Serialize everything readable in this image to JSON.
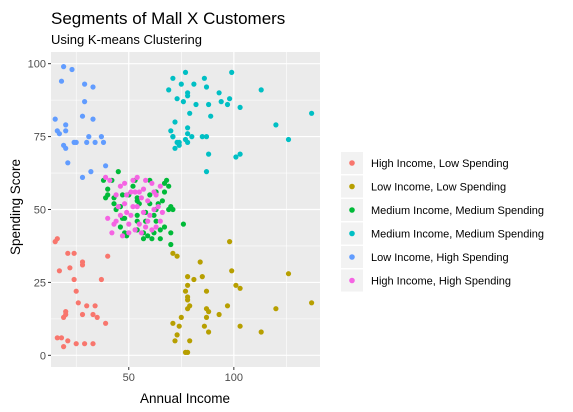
{
  "chart_data": {
    "type": "scatter",
    "title": "Segments of Mall X Customers",
    "subtitle": "Using K-means Clustering",
    "xlabel": "Annual Income",
    "ylabel": "Spending Score",
    "xlim": [
      13,
      141
    ],
    "ylim": [
      -4,
      104
    ],
    "xticks": [
      50,
      100
    ],
    "yticks": [
      0,
      25,
      50,
      75,
      100
    ],
    "grid": true,
    "legend_position": "right",
    "series": [
      {
        "name": "High Income, Low Spending",
        "color": "#F8766D",
        "points": [
          [
            15,
            39
          ],
          [
            16,
            6
          ],
          [
            16,
            40
          ],
          [
            17,
            29
          ],
          [
            18,
            6
          ],
          [
            19,
            3
          ],
          [
            20,
            14
          ],
          [
            20,
            15
          ],
          [
            19,
            13
          ],
          [
            21,
            35
          ],
          [
            21,
            5
          ],
          [
            24,
            35
          ],
          [
            24,
            26
          ],
          [
            25,
            4
          ],
          [
            28,
            14
          ],
          [
            28,
            32
          ],
          [
            28,
            31
          ],
          [
            29,
            4
          ],
          [
            30,
            17
          ],
          [
            33,
            4
          ],
          [
            33,
            14
          ],
          [
            35,
            13
          ],
          [
            34,
            17
          ],
          [
            37,
            26
          ],
          [
            39,
            11
          ],
          [
            40,
            34
          ],
          [
            25,
            22
          ],
          [
            22,
            30
          ],
          [
            26,
            18
          ]
        ]
      },
      {
        "name": "Low Income, Low Spending",
        "color": "#B79F00",
        "points": [
          [
            71,
            35
          ],
          [
            71,
            11
          ],
          [
            72,
            5
          ],
          [
            73,
            34
          ],
          [
            73,
            7
          ],
          [
            74,
            10
          ],
          [
            75,
            13
          ],
          [
            77,
            22
          ],
          [
            77,
            1
          ],
          [
            78,
            16
          ],
          [
            78,
            20
          ],
          [
            78,
            27
          ],
          [
            78,
            1
          ],
          [
            78,
            19
          ],
          [
            78,
            24
          ],
          [
            79,
            17
          ],
          [
            79,
            5
          ],
          [
            81,
            26
          ],
          [
            85,
            27
          ],
          [
            86,
            10
          ],
          [
            87,
            13
          ],
          [
            87,
            16
          ],
          [
            87,
            22
          ],
          [
            88,
            8
          ],
          [
            88,
            15
          ],
          [
            93,
            14
          ],
          [
            97,
            17
          ],
          [
            98,
            39
          ],
          [
            99,
            29
          ],
          [
            101,
            24
          ],
          [
            103,
            23
          ],
          [
            103,
            10
          ],
          [
            113,
            8
          ],
          [
            120,
            16
          ],
          [
            126,
            28
          ],
          [
            137,
            18
          ],
          [
            84,
            32
          ]
        ]
      },
      {
        "name": "Medium Income, Medium Spending",
        "color": "#00BA38",
        "points": [
          [
            38,
            60
          ],
          [
            39,
            54
          ],
          [
            40,
            55
          ],
          [
            40,
            57
          ],
          [
            42,
            60
          ],
          [
            43,
            52
          ],
          [
            43,
            54
          ],
          [
            44,
            50
          ],
          [
            46,
            51
          ],
          [
            46,
            44
          ],
          [
            47,
            47
          ],
          [
            47,
            55
          ],
          [
            48,
            47
          ],
          [
            48,
            42
          ],
          [
            49,
            41
          ],
          [
            50,
            55
          ],
          [
            52,
            58
          ],
          [
            54,
            54
          ],
          [
            54,
            46
          ],
          [
            54,
            43
          ],
          [
            54,
            48
          ],
          [
            54,
            53
          ],
          [
            55,
            52
          ],
          [
            57,
            42
          ],
          [
            58,
            46
          ],
          [
            59,
            41
          ],
          [
            60,
            55
          ],
          [
            60,
            60
          ],
          [
            61,
            40
          ],
          [
            62,
            48
          ],
          [
            62,
            42
          ],
          [
            63,
            50
          ],
          [
            63,
            46
          ],
          [
            64,
            52
          ],
          [
            65,
            43
          ],
          [
            65,
            40
          ],
          [
            67,
            44
          ],
          [
            67,
            56
          ],
          [
            69,
            58
          ],
          [
            69,
            50
          ],
          [
            70,
            42
          ],
          [
            70,
            51
          ],
          [
            63,
            56
          ],
          [
            57,
            40
          ],
          [
            68,
            60
          ],
          [
            45,
            63
          ],
          [
            67,
            59
          ],
          [
            53,
            60
          ],
          [
            60,
            52
          ],
          [
            58,
            49
          ],
          [
            71,
            50
          ],
          [
            76,
            45
          ],
          [
            66,
            53
          ],
          [
            70,
            38
          ]
        ]
      },
      {
        "name": "Medium Income, Medium Spending",
        "color": "#00BFC4",
        "points": [
          [
            69,
            91
          ],
          [
            70,
            77
          ],
          [
            71,
            95
          ],
          [
            71,
            75
          ],
          [
            71,
            75
          ],
          [
            72,
            71
          ],
          [
            73,
            88
          ],
          [
            73,
            73
          ],
          [
            74,
            72
          ],
          [
            75,
            93
          ],
          [
            76,
            87
          ],
          [
            77,
            97
          ],
          [
            77,
            74
          ],
          [
            78,
            90
          ],
          [
            78,
            76
          ],
          [
            78,
            89
          ],
          [
            78,
            78
          ],
          [
            78,
            73
          ],
          [
            79,
            83
          ],
          [
            81,
            93
          ],
          [
            85,
            75
          ],
          [
            86,
            95
          ],
          [
            87,
            63
          ],
          [
            87,
            75
          ],
          [
            87,
            92
          ],
          [
            88,
            86
          ],
          [
            88,
            69
          ],
          [
            93,
            90
          ],
          [
            97,
            86
          ],
          [
            98,
            88
          ],
          [
            99,
            97
          ],
          [
            101,
            68
          ],
          [
            103,
            85
          ],
          [
            103,
            69
          ],
          [
            113,
            91
          ],
          [
            120,
            79
          ],
          [
            126,
            74
          ],
          [
            137,
            83
          ],
          [
            74,
            73
          ],
          [
            82,
            86
          ],
          [
            94,
            87
          ],
          [
            89,
            82
          ],
          [
            80,
            75
          ],
          [
            72,
            80
          ]
        ]
      },
      {
        "name": "Low Income, High Spending",
        "color": "#619CFF",
        "points": [
          [
            15,
            81
          ],
          [
            16,
            77
          ],
          [
            17,
            76
          ],
          [
            18,
            94
          ],
          [
            19,
            72
          ],
          [
            19,
            99
          ],
          [
            20,
            77
          ],
          [
            20,
            79
          ],
          [
            21,
            66
          ],
          [
            23,
            98
          ],
          [
            24,
            73
          ],
          [
            25,
            73
          ],
          [
            28,
            82
          ],
          [
            28,
            61
          ],
          [
            29,
            87
          ],
          [
            30,
            73
          ],
          [
            33,
            92
          ],
          [
            33,
            81
          ],
          [
            34,
            73
          ],
          [
            37,
            75
          ],
          [
            38,
            73
          ],
          [
            39,
            65
          ],
          [
            20,
            71
          ],
          [
            31,
            75
          ],
          [
            29,
            93
          ],
          [
            32,
            63
          ]
        ]
      },
      {
        "name": "High Income, High Spending",
        "color": "#F564E3",
        "points": [
          [
            39,
            61
          ],
          [
            40,
            47
          ],
          [
            41,
            60
          ],
          [
            42,
            42
          ],
          [
            43,
            45
          ],
          [
            44,
            46
          ],
          [
            45,
            51
          ],
          [
            46,
            48
          ],
          [
            47,
            41
          ],
          [
            48,
            59
          ],
          [
            48,
            52
          ],
          [
            49,
            49
          ],
          [
            49,
            55
          ],
          [
            50,
            42
          ],
          [
            50,
            45
          ],
          [
            51,
            48
          ],
          [
            52,
            60
          ],
          [
            52,
            51
          ],
          [
            53,
            43
          ],
          [
            54,
            51
          ],
          [
            55,
            45
          ],
          [
            55,
            56
          ],
          [
            56,
            54
          ],
          [
            56,
            42
          ],
          [
            57,
            49
          ],
          [
            58,
            44
          ],
          [
            58,
            60
          ],
          [
            59,
            53
          ],
          [
            60,
            48
          ],
          [
            61,
            59
          ],
          [
            62,
            50
          ],
          [
            62,
            56
          ],
          [
            63,
            44
          ],
          [
            63,
            55
          ],
          [
            64,
            51
          ],
          [
            65,
            46
          ],
          [
            65,
            58
          ],
          [
            46,
            58
          ],
          [
            53,
            56
          ],
          [
            61,
            43
          ],
          [
            57,
            57
          ],
          [
            44,
            55
          ],
          [
            66,
            49
          ],
          [
            51,
            56
          ],
          [
            59,
            46
          ],
          [
            54,
            61
          ]
        ]
      }
    ]
  }
}
